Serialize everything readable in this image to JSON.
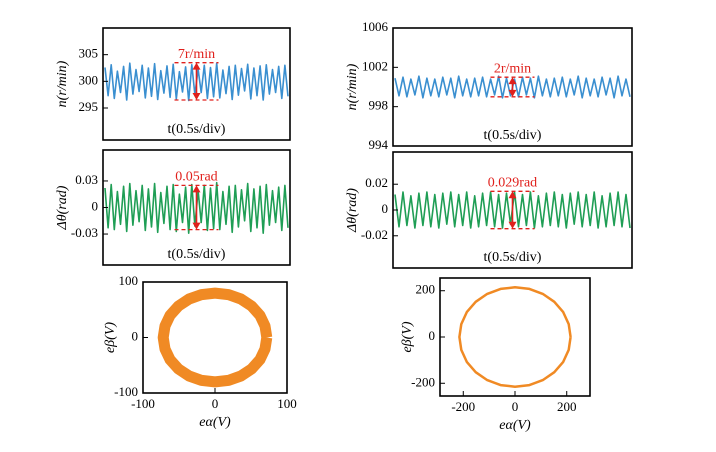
{
  "chart_data": [
    {
      "type": "line",
      "ylabel": "n(r/min)",
      "xlabel": "t(0.5s/div)",
      "color": "#3a8fd0",
      "ylim": [
        289,
        310
      ],
      "yticks": [
        295,
        300,
        305
      ],
      "annotation": {
        "text": "7r/min",
        "low": 296.5,
        "high": 303.5
      },
      "values": [
        302.6,
        297.3,
        303.1,
        296.8,
        301.9,
        297.9,
        302.8,
        296.5,
        303.4,
        297.6,
        302.2,
        298.1,
        303.0,
        296.9,
        302.5,
        297.2,
        303.3,
        296.6,
        302.0,
        297.8,
        302.9,
        297.0,
        303.2,
        296.7,
        301.8,
        298.0,
        302.7,
        296.4,
        303.1,
        297.5,
        302.3,
        297.9,
        303.0,
        296.8,
        302.6,
        297.1,
        303.4,
        296.9,
        302.1,
        297.7,
        302.8,
        296.6,
        303.0,
        297.4,
        302.4,
        298.2,
        303.2,
        296.7,
        302.5,
        297.3,
        302.9,
        296.5,
        303.1,
        297.6,
        302.2,
        297.9,
        302.8,
        296.8,
        303.0,
        297.2
      ]
    },
    {
      "type": "line",
      "ylabel": "n(r/min)",
      "xlabel": "t(0.5s/div)",
      "color": "#3a8fd0",
      "ylim": [
        994,
        1006
      ],
      "yticks": [
        994,
        998,
        1002,
        1006
      ],
      "annotation": {
        "text": "2r/min",
        "low": 999,
        "high": 1001
      },
      "values": [
        1000.9,
        999.1,
        1001.0,
        999.0,
        1000.8,
        999.2,
        1001.1,
        998.9,
        1000.9,
        999.1,
        1000.8,
        999.0,
        1001.0,
        999.2,
        1000.9,
        998.9,
        1001.1,
        999.1,
        1000.8,
        999.0,
        1000.9,
        999.1,
        1001.0,
        999.0,
        1000.8,
        999.2,
        1001.1,
        998.9,
        1000.9,
        999.1,
        1000.8,
        999.0,
        1001.0,
        999.2,
        1000.9,
        998.9,
        1001.1,
        999.1,
        1000.8,
        999.0,
        1000.9,
        999.1,
        1001.0,
        999.0,
        1000.8,
        999.2,
        1001.1,
        998.9,
        1000.9,
        999.1,
        1000.8,
        999.0,
        1001.0,
        999.2,
        1000.9,
        998.9,
        1001.1,
        999.1,
        1000.8,
        999.0
      ]
    },
    {
      "type": "line",
      "ylabel": "Δθ(rad)",
      "xlabel": "t(0.5s/div)",
      "color": "#1f9e55",
      "ylim": [
        -0.065,
        0.065
      ],
      "yticks": [
        0.03,
        0,
        -0.03
      ],
      "annotation": {
        "text": "0.05rad",
        "low": -0.025,
        "high": 0.025
      },
      "values": [
        0.022,
        -0.023,
        0.026,
        -0.025,
        0.018,
        -0.019,
        0.024,
        -0.027,
        0.027,
        -0.02,
        0.019,
        -0.016,
        0.025,
        -0.026,
        0.021,
        -0.022,
        0.027,
        -0.028,
        0.017,
        -0.018,
        0.024,
        -0.025,
        0.026,
        -0.027,
        0.015,
        -0.017,
        0.023,
        -0.029,
        0.026,
        -0.021,
        0.019,
        -0.017,
        0.025,
        -0.026,
        0.022,
        -0.024,
        0.028,
        -0.025,
        0.018,
        -0.019,
        0.024,
        -0.028,
        0.025,
        -0.022,
        0.02,
        -0.015,
        0.027,
        -0.027,
        0.021,
        -0.023,
        0.024,
        -0.029,
        0.026,
        -0.02,
        0.019,
        -0.017,
        0.023,
        -0.026,
        0.025,
        -0.023
      ]
    },
    {
      "type": "line",
      "ylabel": "Δθ(rad)",
      "xlabel": "t(0.5s/div)",
      "color": "#1f9e55",
      "ylim": [
        -0.045,
        0.045
      ],
      "yticks": [
        0.02,
        0,
        -0.02
      ],
      "annotation": {
        "text": "0.029rad",
        "low": -0.0145,
        "high": 0.0145
      },
      "values": [
        0.012,
        -0.013,
        0.014,
        -0.012,
        0.011,
        -0.014,
        0.013,
        -0.012,
        0.014,
        -0.013,
        0.012,
        -0.014,
        0.013,
        -0.011,
        0.014,
        -0.013,
        0.012,
        -0.012,
        0.014,
        -0.014,
        0.011,
        -0.013,
        0.013,
        -0.012,
        0.014,
        -0.013,
        0.012,
        -0.014,
        0.013,
        -0.011,
        0.014,
        -0.013,
        0.012,
        -0.012,
        0.014,
        -0.014,
        0.011,
        -0.013,
        0.013,
        -0.012,
        0.014,
        -0.013,
        0.012,
        -0.014,
        0.013,
        -0.011,
        0.014,
        -0.013,
        0.012,
        -0.012,
        0.014,
        -0.014,
        0.011,
        -0.013,
        0.013,
        -0.012,
        0.014,
        -0.013,
        0.012,
        -0.014
      ]
    },
    {
      "type": "line",
      "xlabel": "eα(V)",
      "ylabel": "eβ(V)",
      "color": "#f08a24",
      "xlim": [
        -100,
        100
      ],
      "ylim": [
        -100,
        100
      ],
      "xticks": [
        -100,
        0,
        100
      ],
      "yticks": [
        100,
        0,
        -100
      ],
      "x": [
        72,
        69.5,
        62.4,
        50.9,
        36,
        18.6,
        0,
        -18.6,
        -36,
        -50.9,
        -62.4,
        -69.5,
        -72,
        -69.5,
        -62.4,
        -50.9,
        -36,
        -18.6,
        0,
        18.6,
        36,
        50.9,
        62.4,
        69.5,
        72
      ],
      "values": [
        0,
        20.7,
        40,
        56.6,
        69.3,
        77.3,
        80,
        77.3,
        69.3,
        56.6,
        40,
        20.7,
        0,
        -20.7,
        -40,
        -56.6,
        -69.3,
        -77.3,
        -80,
        -77.3,
        -69.3,
        -56.6,
        -40,
        -20.7,
        0
      ]
    },
    {
      "type": "line",
      "xlabel": "eα(V)",
      "ylabel": "eβ(V)",
      "color": "#f08a24",
      "xlim": [
        -290,
        290
      ],
      "ylim": [
        -255,
        255
      ],
      "xticks": [
        -200,
        0,
        200
      ],
      "yticks": [
        200,
        0,
        -200
      ],
      "x": [
        215,
        207.7,
        186.2,
        152,
        107.5,
        55.6,
        0,
        -55.6,
        -107.5,
        -152,
        -186.2,
        -207.7,
        -215,
        -207.7,
        -186.2,
        -152,
        -107.5,
        -55.6,
        0,
        55.6,
        107.5,
        152,
        186.2,
        207.7,
        215
      ],
      "values": [
        0,
        55.6,
        107.5,
        152,
        186.2,
        207.7,
        215,
        207.7,
        186.2,
        152,
        107.5,
        55.6,
        0,
        -55.6,
        -107.5,
        -152,
        -186.2,
        -207.7,
        -215,
        -207.7,
        -186.2,
        -152,
        -107.5,
        -55.6,
        0
      ]
    }
  ]
}
